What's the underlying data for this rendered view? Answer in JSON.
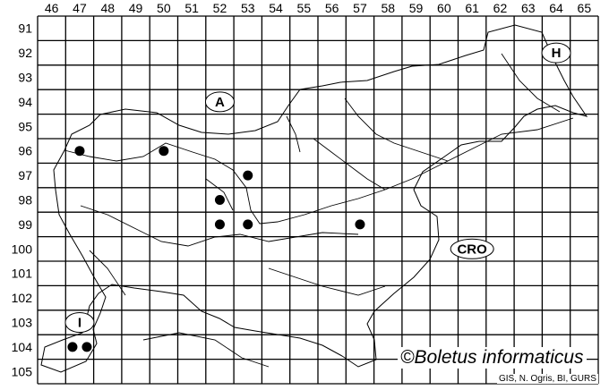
{
  "map": {
    "columns": [
      "46",
      "47",
      "48",
      "49",
      "50",
      "51",
      "52",
      "53",
      "54",
      "55",
      "56",
      "57",
      "58",
      "59",
      "60",
      "61",
      "62",
      "63",
      "64",
      "65"
    ],
    "rows": [
      "91",
      "92",
      "93",
      "94",
      "95",
      "96",
      "97",
      "98",
      "99",
      "100",
      "101",
      "102",
      "103",
      "104",
      "105"
    ],
    "country_labels": [
      {
        "id": "austria",
        "text": "A",
        "col": "52",
        "row": "94"
      },
      {
        "id": "hungary",
        "text": "H",
        "col": "64",
        "row": "92"
      },
      {
        "id": "croatia",
        "text": "CRO",
        "col": "61",
        "row": "100"
      },
      {
        "id": "italy",
        "text": "I",
        "col": "47",
        "row": "103"
      }
    ],
    "records": [
      {
        "col": "47",
        "row": "96"
      },
      {
        "col": "50",
        "row": "96"
      },
      {
        "col": "53",
        "row": "97"
      },
      {
        "col": "52",
        "row": "98"
      },
      {
        "col": "52",
        "row": "99"
      },
      {
        "col": "53",
        "row": "99"
      },
      {
        "col": "57",
        "row": "99"
      },
      {
        "col": "47",
        "row": "104"
      },
      {
        "col": "47",
        "row": "104"
      }
    ],
    "dot_color": "#000000"
  },
  "credit": "©Boletus informaticus",
  "source": "GIS, N. Ogris, BI, GURS"
}
